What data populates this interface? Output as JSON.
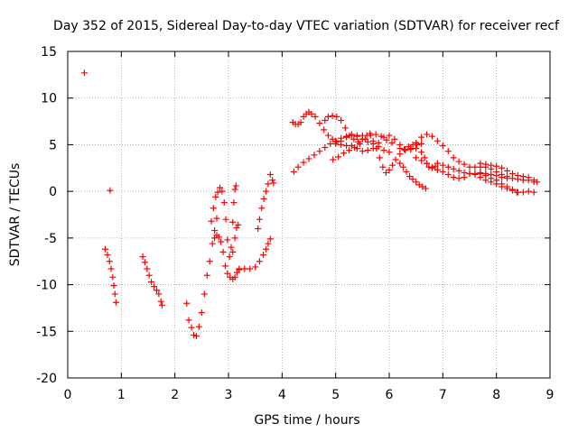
{
  "chart_data": {
    "type": "scatter",
    "title": "Day 352 of 2015, Sidereal Day-to-day VTEC variation (SDTVAR) for receiver recf",
    "xlabel": "GPS time / hours",
    "ylabel": "SDTVAR / TECUs",
    "xlim": [
      0,
      9
    ],
    "ylim": [
      -20,
      15
    ],
    "xticks": [
      0,
      1,
      2,
      3,
      4,
      5,
      6,
      7,
      8,
      9
    ],
    "yticks": [
      -20,
      -15,
      -10,
      -5,
      0,
      5,
      10,
      15
    ],
    "xtick_labels": [
      "0",
      "1",
      "2",
      "3",
      "4",
      "5",
      "6",
      "7",
      "8",
      "9"
    ],
    "ytick_labels": [
      "-20",
      "-15",
      "-10",
      "-5",
      "0",
      "5",
      "10",
      "15"
    ],
    "grid": true,
    "marker": "+",
    "color": "#ff0000",
    "series": [
      {
        "name": "isolated-1",
        "points": [
          [
            0.31,
            12.7
          ]
        ]
      },
      {
        "name": "isolated-2",
        "points": [
          [
            0.79,
            0.1
          ]
        ]
      },
      {
        "name": "arc-0.7",
        "points": [
          [
            0.7,
            -6.2
          ],
          [
            0.74,
            -6.8
          ],
          [
            0.78,
            -7.5
          ],
          [
            0.81,
            -8.3
          ],
          [
            0.84,
            -9.2
          ],
          [
            0.86,
            -10.1
          ],
          [
            0.88,
            -11.0
          ],
          [
            0.9,
            -11.9
          ]
        ]
      },
      {
        "name": "arc-1.4",
        "points": [
          [
            1.4,
            -7.0
          ],
          [
            1.44,
            -7.6
          ],
          [
            1.48,
            -8.3
          ],
          [
            1.52,
            -9.0
          ],
          [
            1.56,
            -9.7
          ],
          [
            1.61,
            -10.2
          ],
          [
            1.66,
            -10.6
          ],
          [
            1.7,
            -11.0
          ],
          [
            1.74,
            -11.8
          ],
          [
            1.76,
            -12.2
          ]
        ]
      },
      {
        "name": "arc-2.2",
        "points": [
          [
            2.22,
            -12.0
          ],
          [
            2.26,
            -13.8
          ],
          [
            2.31,
            -14.6
          ],
          [
            2.35,
            -15.4
          ],
          [
            2.4,
            -15.5
          ],
          [
            2.45,
            -14.5
          ],
          [
            2.5,
            -13.0
          ],
          [
            2.55,
            -11.0
          ],
          [
            2.6,
            -9.0
          ],
          [
            2.65,
            -7.5
          ],
          [
            2.7,
            -5.6
          ],
          [
            2.74,
            -4.2
          ],
          [
            2.78,
            -2.9
          ]
        ]
      },
      {
        "name": "arc-2.7",
        "points": [
          [
            2.68,
            -3.2
          ],
          [
            2.72,
            -1.8
          ],
          [
            2.76,
            -0.6
          ],
          [
            2.8,
            -0.1
          ],
          [
            2.84,
            0.4
          ],
          [
            2.88,
            0.0
          ],
          [
            2.92,
            -1.2
          ],
          [
            2.95,
            -3.0
          ],
          [
            2.98,
            -5.2
          ],
          [
            3.02,
            -7.0
          ],
          [
            3.05,
            -6.0
          ],
          [
            3.08,
            -3.3
          ],
          [
            3.1,
            -1.2
          ],
          [
            3.12,
            0.2
          ],
          [
            3.14,
            0.6
          ]
        ]
      },
      {
        "name": "arc-2.75b",
        "points": [
          [
            2.74,
            -5.0
          ],
          [
            2.78,
            -4.7
          ],
          [
            2.82,
            -4.9
          ],
          [
            2.86,
            -5.4
          ],
          [
            2.9,
            -6.5
          ],
          [
            2.94,
            -8.0
          ],
          [
            2.98,
            -8.8
          ],
          [
            3.03,
            -9.2
          ],
          [
            3.08,
            -9.4
          ],
          [
            3.12,
            -9.2
          ],
          [
            3.16,
            -8.7
          ],
          [
            3.2,
            -8.3
          ]
        ]
      },
      {
        "name": "arc-3.1",
        "points": [
          [
            3.08,
            -6.5
          ],
          [
            3.12,
            -5.0
          ],
          [
            3.15,
            -3.9
          ],
          [
            3.18,
            -3.6
          ]
        ]
      },
      {
        "name": "arc-3.2",
        "points": [
          [
            3.2,
            -8.4
          ],
          [
            3.3,
            -8.3
          ],
          [
            3.4,
            -8.3
          ],
          [
            3.5,
            -8.1
          ],
          [
            3.58,
            -7.5
          ],
          [
            3.65,
            -6.8
          ],
          [
            3.7,
            -6.2
          ],
          [
            3.74,
            -5.6
          ],
          [
            3.78,
            -5.1
          ]
        ]
      },
      {
        "name": "arc-3.55",
        "points": [
          [
            3.55,
            -4.0
          ],
          [
            3.58,
            -3.0
          ],
          [
            3.62,
            -1.8
          ],
          [
            3.66,
            -0.8
          ],
          [
            3.7,
            0.0
          ],
          [
            3.74,
            0.8
          ],
          [
            3.78,
            1.8
          ],
          [
            3.82,
            1.2
          ],
          [
            3.84,
            0.9
          ]
        ]
      },
      {
        "name": "arc-4.2a",
        "points": [
          [
            4.2,
            7.4
          ],
          [
            4.25,
            7.2
          ],
          [
            4.3,
            7.2
          ],
          [
            4.35,
            7.4
          ],
          [
            4.4,
            8.0
          ],
          [
            4.45,
            8.3
          ],
          [
            4.5,
            8.5
          ],
          [
            4.55,
            8.3
          ],
          [
            4.62,
            8.0
          ],
          [
            4.7,
            7.3
          ],
          [
            4.78,
            6.6
          ],
          [
            4.86,
            6.0
          ],
          [
            4.94,
            5.6
          ],
          [
            5.02,
            5.3
          ],
          [
            5.1,
            5.0
          ],
          [
            5.2,
            4.9
          ],
          [
            5.3,
            4.9
          ],
          [
            5.4,
            4.6
          ],
          [
            5.5,
            4.3
          ],
          [
            5.6,
            4.4
          ],
          [
            5.7,
            4.6
          ],
          [
            5.8,
            5.2
          ],
          [
            5.9,
            5.8
          ],
          [
            6.0,
            6.0
          ],
          [
            6.1,
            5.6
          ],
          [
            6.2,
            5.0
          ],
          [
            6.3,
            4.5
          ]
        ]
      },
      {
        "name": "arc-4.8",
        "points": [
          [
            4.8,
            7.6
          ],
          [
            4.86,
            8.0
          ],
          [
            4.94,
            8.1
          ],
          [
            5.02,
            8.0
          ],
          [
            5.1,
            7.6
          ],
          [
            5.18,
            6.8
          ],
          [
            5.26,
            6.0
          ],
          [
            5.34,
            5.6
          ],
          [
            5.42,
            5.3
          ],
          [
            5.5,
            5.6
          ],
          [
            5.58,
            6.0
          ],
          [
            5.64,
            6.2
          ],
          [
            5.7,
            5.4
          ],
          [
            5.76,
            4.6
          ],
          [
            5.82,
            3.6
          ],
          [
            5.88,
            2.6
          ],
          [
            5.94,
            2.0
          ],
          [
            6.0,
            2.3
          ],
          [
            6.06,
            2.8
          ],
          [
            6.12,
            3.4
          ],
          [
            6.2,
            4.0
          ],
          [
            6.28,
            4.5
          ],
          [
            6.36,
            4.8
          ],
          [
            6.44,
            5.0
          ],
          [
            6.52,
            5.0
          ],
          [
            6.6,
            5.1
          ]
        ]
      },
      {
        "name": "arc-4.2b",
        "points": [
          [
            4.22,
            2.1
          ],
          [
            4.3,
            2.6
          ],
          [
            4.4,
            3.1
          ],
          [
            4.5,
            3.5
          ],
          [
            4.6,
            3.9
          ],
          [
            4.7,
            4.3
          ],
          [
            4.8,
            4.7
          ],
          [
            4.9,
            5.1
          ],
          [
            5.0,
            5.4
          ],
          [
            5.1,
            5.7
          ],
          [
            5.2,
            5.9
          ],
          [
            5.3,
            6.0
          ],
          [
            5.4,
            5.9
          ],
          [
            5.5,
            6.0
          ]
        ]
      },
      {
        "name": "arc-4.95",
        "points": [
          [
            4.95,
            3.4
          ],
          [
            5.05,
            3.7
          ],
          [
            5.15,
            4.1
          ],
          [
            5.25,
            4.4
          ],
          [
            5.35,
            4.7
          ],
          [
            5.45,
            5.1
          ],
          [
            5.55,
            5.6
          ],
          [
            5.65,
            6.0
          ],
          [
            5.75,
            6.1
          ],
          [
            5.85,
            5.9
          ],
          [
            5.95,
            5.5
          ],
          [
            6.05,
            5.2
          ]
        ]
      },
      {
        "name": "arc-5.0",
        "points": [
          [
            5.0,
            5.1
          ],
          [
            5.1,
            5.4
          ],
          [
            5.2,
            5.8
          ],
          [
            5.3,
            6.1
          ],
          [
            5.4,
            6.0
          ],
          [
            5.5,
            5.6
          ],
          [
            5.6,
            5.3
          ],
          [
            5.7,
            5.1
          ],
          [
            5.8,
            4.8
          ],
          [
            5.9,
            4.4
          ],
          [
            6.0,
            4.2
          ]
        ]
      },
      {
        "name": "arc-6.2",
        "points": [
          [
            6.2,
            4.6
          ],
          [
            6.3,
            4.4
          ],
          [
            6.4,
            4.5
          ],
          [
            6.5,
            4.6
          ],
          [
            6.6,
            4.2
          ],
          [
            6.66,
            3.6
          ],
          [
            6.7,
            3.0
          ],
          [
            6.74,
            2.6
          ],
          [
            6.8,
            2.5
          ],
          [
            6.86,
            2.7
          ]
        ]
      },
      {
        "name": "arc-6.2b",
        "points": [
          [
            6.2,
            3.0
          ],
          [
            6.26,
            2.6
          ],
          [
            6.32,
            2.1
          ],
          [
            6.38,
            1.6
          ],
          [
            6.44,
            1.3
          ],
          [
            6.5,
            1.0
          ],
          [
            6.56,
            0.7
          ],
          [
            6.62,
            0.5
          ],
          [
            6.68,
            0.3
          ]
        ]
      },
      {
        "name": "arc-6.4",
        "points": [
          [
            6.4,
            4.6
          ],
          [
            6.5,
            5.2
          ],
          [
            6.6,
            5.8
          ],
          [
            6.7,
            6.1
          ],
          [
            6.8,
            5.9
          ],
          [
            6.9,
            5.4
          ],
          [
            7.0,
            4.9
          ],
          [
            7.1,
            4.3
          ],
          [
            7.2,
            3.6
          ],
          [
            7.3,
            3.2
          ],
          [
            7.4,
            2.9
          ],
          [
            7.5,
            2.6
          ],
          [
            7.6,
            2.6
          ],
          [
            7.7,
            2.6
          ],
          [
            7.8,
            2.6
          ],
          [
            7.9,
            2.4
          ],
          [
            8.0,
            2.1
          ],
          [
            8.1,
            1.8
          ],
          [
            8.2,
            1.6
          ],
          [
            8.3,
            1.4
          ],
          [
            8.4,
            1.3
          ],
          [
            8.5,
            1.2
          ],
          [
            8.6,
            1.2
          ],
          [
            8.7,
            1.0
          ]
        ]
      },
      {
        "name": "arc-6.5",
        "points": [
          [
            6.5,
            3.6
          ],
          [
            6.6,
            3.3
          ],
          [
            6.7,
            3.0
          ],
          [
            6.8,
            2.6
          ],
          [
            6.9,
            2.3
          ],
          [
            7.0,
            2.1
          ],
          [
            7.1,
            1.8
          ],
          [
            7.2,
            1.5
          ],
          [
            7.3,
            1.4
          ],
          [
            7.4,
            1.5
          ],
          [
            7.5,
            1.9
          ],
          [
            7.6,
            1.9
          ],
          [
            7.7,
            1.9
          ],
          [
            7.8,
            1.9
          ],
          [
            7.9,
            1.8
          ],
          [
            8.0,
            1.7
          ],
          [
            8.1,
            1.5
          ],
          [
            8.2,
            1.4
          ]
        ]
      },
      {
        "name": "arc-6.9",
        "points": [
          [
            6.9,
            3.0
          ],
          [
            7.0,
            2.8
          ],
          [
            7.1,
            2.6
          ],
          [
            7.2,
            2.4
          ],
          [
            7.3,
            2.2
          ],
          [
            7.4,
            2.0
          ],
          [
            7.5,
            1.9
          ],
          [
            7.6,
            1.8
          ],
          [
            7.7,
            1.5
          ],
          [
            7.8,
            1.2
          ],
          [
            7.9,
            1.0
          ],
          [
            8.0,
            0.8
          ],
          [
            8.1,
            0.5
          ],
          [
            8.2,
            0.3
          ],
          [
            8.3,
            0.1
          ],
          [
            8.4,
            -0.1
          ],
          [
            8.5,
            -0.1
          ],
          [
            8.6,
            0.0
          ],
          [
            8.7,
            -0.1
          ]
        ]
      },
      {
        "name": "arc-7.7",
        "points": [
          [
            7.7,
            3.0
          ],
          [
            7.8,
            2.9
          ],
          [
            7.9,
            2.8
          ],
          [
            8.0,
            2.7
          ],
          [
            8.1,
            2.5
          ],
          [
            8.2,
            2.2
          ],
          [
            8.3,
            1.9
          ],
          [
            8.4,
            1.7
          ],
          [
            8.5,
            1.6
          ],
          [
            8.6,
            1.5
          ],
          [
            8.7,
            1.2
          ],
          [
            8.76,
            1.0
          ]
        ]
      },
      {
        "name": "arc-7.7b",
        "points": [
          [
            7.7,
            2.0
          ],
          [
            7.8,
            1.7
          ],
          [
            7.9,
            1.4
          ],
          [
            8.0,
            1.2
          ],
          [
            8.1,
            0.8
          ],
          [
            8.2,
            0.5
          ],
          [
            8.3,
            0.2
          ],
          [
            8.38,
            -0.1
          ]
        ]
      }
    ]
  }
}
